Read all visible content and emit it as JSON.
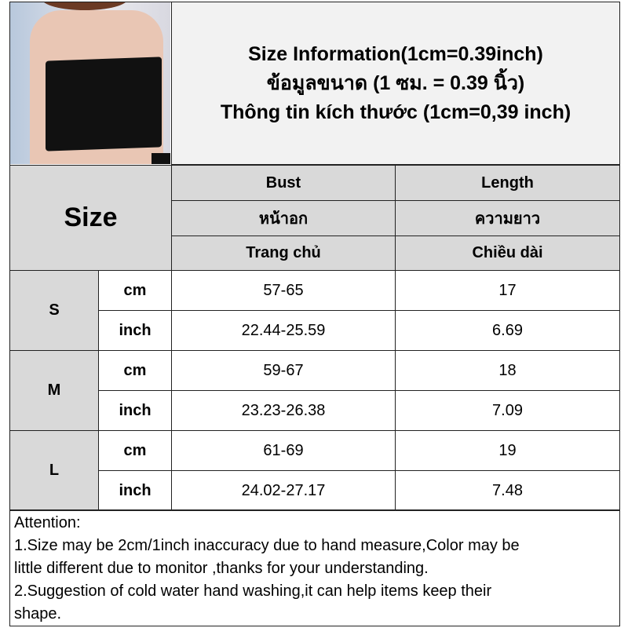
{
  "title_lines": [
    "Size Information(1cm=0.39inch)",
    "ข้อมูลขนาด (1 ซม. = 0.39 นิ้ว)",
    "Thông tin kích thước (1cm=0,39 inch)"
  ],
  "size_header": "Size",
  "columns": [
    {
      "en": "Bust",
      "th": "หน้าอก",
      "vi": "Trang chủ"
    },
    {
      "en": "Length",
      "th": "ความยาว",
      "vi": "Chiều dài"
    }
  ],
  "rows": [
    {
      "size": "S",
      "cm": {
        "unit": "cm",
        "bust": "57-65",
        "length": "17"
      },
      "inch": {
        "unit": "inch",
        "bust": "22.44-25.59",
        "length": "6.69"
      }
    },
    {
      "size": "M",
      "cm": {
        "unit": "cm",
        "bust": "59-67",
        "length": "18"
      },
      "inch": {
        "unit": "inch",
        "bust": "23.23-26.38",
        "length": "7.09"
      }
    },
    {
      "size": "L",
      "cm": {
        "unit": "cm",
        "bust": "61-69",
        "length": "19"
      },
      "inch": {
        "unit": "inch",
        "bust": "24.02-27.17",
        "length": "7.48"
      }
    }
  ],
  "attention": [
    "Attention:",
    "1.Size may be 2cm/1inch inaccuracy due to hand measure,Color may be",
    "little different due to monitor ,thanks for your understanding.",
    "2.Suggestion of cold water hand washing,it can help items keep their",
    "shape."
  ]
}
